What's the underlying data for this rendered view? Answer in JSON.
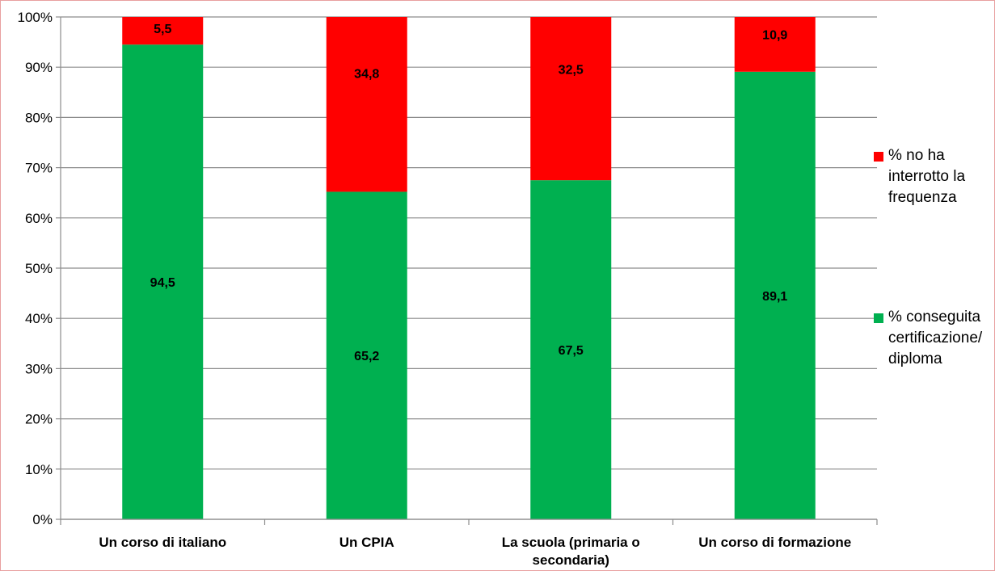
{
  "chart_data": {
    "type": "bar",
    "stacked": true,
    "categories": [
      "Un corso di italiano",
      "Un CPIA",
      "La scuola (primaria o secondaria)",
      "Un corso di formazione"
    ],
    "category_lines": [
      [
        "Un corso di italiano"
      ],
      [
        "Un CPIA"
      ],
      [
        "La scuola (primaria o",
        "secondaria)"
      ],
      [
        "Un corso di formazione"
      ]
    ],
    "series": [
      {
        "name": "% conseguita certificazione/ diploma",
        "color": "#00b050",
        "values": [
          94.5,
          65.2,
          67.5,
          89.1
        ],
        "labels": [
          "94,5",
          "65,2",
          "67,5",
          "89,1"
        ]
      },
      {
        "name": "% no ha interrotto la frequenza",
        "color": "#ff0000",
        "values": [
          5.5,
          34.8,
          32.5,
          10.9
        ],
        "labels": [
          "5,5",
          "34,8",
          "32,5",
          "10,9"
        ]
      }
    ],
    "ylim": [
      0,
      100
    ],
    "yticks": [
      "0%",
      "10%",
      "20%",
      "30%",
      "40%",
      "50%",
      "60%",
      "70%",
      "80%",
      "90%",
      "100%"
    ],
    "grid": true,
    "legend_position": "right",
    "legend": [
      {
        "lines": [
          "% no  ha",
          "interrotto la",
          "frequenza"
        ],
        "color": "#ff0000"
      },
      {
        "lines": [
          "% conseguita",
          "certificazione/",
          "diploma"
        ],
        "color": "#00b050"
      }
    ]
  }
}
